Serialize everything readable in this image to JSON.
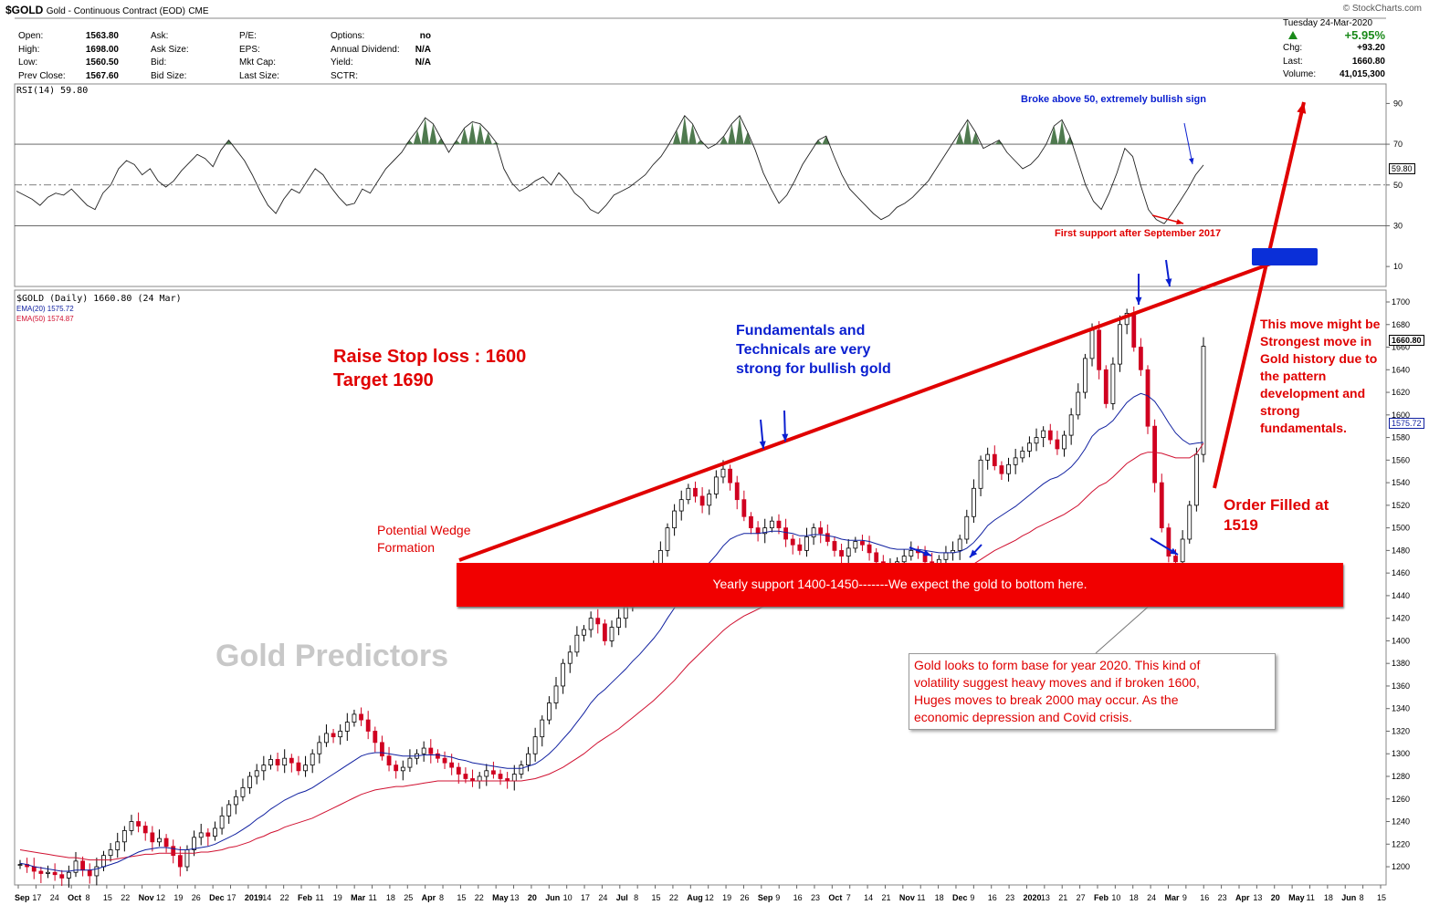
{
  "header": {
    "symbol": "$GOLD",
    "name": "Gold - Continuous Contract (EOD)",
    "exchange": "CME",
    "brand": "© StockCharts.com",
    "date": "Tuesday  24-Mar-2020",
    "pct_change": "+5.95%",
    "fields": [
      {
        "k": "Open:",
        "v": "1563.80"
      },
      {
        "k": "High:",
        "v": "1698.00"
      },
      {
        "k": "Low:",
        "v": "1560.50"
      },
      {
        "k": "Prev Close:",
        "v": "1567.60"
      }
    ],
    "fields2": [
      {
        "k": "Ask:"
      },
      {
        "k": "Ask Size:"
      },
      {
        "k": "Bid:"
      },
      {
        "k": "Bid Size:"
      }
    ],
    "fields3": [
      {
        "k": "P/E:"
      },
      {
        "k": "EPS:"
      },
      {
        "k": "Mkt Cap:"
      },
      {
        "k": "Last Size:"
      }
    ],
    "fields4": [
      {
        "k": "Options:",
        "v": "no"
      },
      {
        "k": "Annual Dividend:",
        "v": "N/A"
      },
      {
        "k": "Yield:",
        "v": "N/A"
      },
      {
        "k": "SCTR:",
        "v": ""
      }
    ],
    "right": [
      {
        "k": "Chg:",
        "v": "+93.20"
      },
      {
        "k": "Last:",
        "v": "1660.80"
      },
      {
        "k": "Volume:",
        "v": "41,015,300"
      }
    ]
  },
  "rsi_panel": {
    "label": "RSI(14) 59.80",
    "value_tag": "59.80",
    "ticks": [
      "90",
      "70",
      "50",
      "30",
      "10"
    ]
  },
  "price_panel": {
    "label": "$GOLD (Daily) 1660.80 (24 Mar)",
    "ema20_label": "EMA(20) 1575.72",
    "ema50_label": "EMA(50) 1574.87",
    "last_tag": "1660.80",
    "ema_tag": "1575.72",
    "ticks": [
      "1700",
      "1680",
      "1660",
      "1640",
      "1620",
      "1600",
      "1580",
      "1560",
      "1540",
      "1520",
      "1500",
      "1480",
      "1460",
      "1440",
      "1420",
      "1400",
      "1380",
      "1360",
      "1340",
      "1320",
      "1300",
      "1280",
      "1260",
      "1240",
      "1220",
      "1200"
    ]
  },
  "x_axis": {
    "labels": [
      "Sep",
      "17",
      "24",
      "Oct",
      "8",
      "15",
      "22",
      "Nov",
      "12",
      "19",
      "26",
      "Dec",
      "17",
      "2019",
      "14",
      "22",
      "Feb",
      "11",
      "19",
      "Mar",
      "11",
      "18",
      "25",
      "Apr",
      "8",
      "15",
      "22",
      "May",
      "13",
      "20",
      "Jun",
      "10",
      "17",
      "24",
      "Jul",
      "8",
      "15",
      "22",
      "Aug",
      "12",
      "19",
      "26",
      "Sep",
      "9",
      "16",
      "23",
      "Oct",
      "7",
      "14",
      "21",
      "Nov",
      "11",
      "18",
      "Dec",
      "9",
      "16",
      "23",
      "2020",
      "13",
      "21",
      "27",
      "Feb",
      "10",
      "18",
      "24",
      "Mar",
      "9",
      "16",
      "23",
      "Apr",
      "13",
      "20",
      "May",
      "11",
      "18",
      "Jun",
      "8",
      "15"
    ]
  },
  "annotations": {
    "broke_above": "Broke above 50, extremely bullish sign",
    "first_support": "First support after September 2017",
    "raise_stop": "Raise Stop loss : 1600",
    "target": "Target 1690",
    "fundamentals": [
      "Fundamentals and",
      "Technicals are very",
      "strong for bullish gold"
    ],
    "wedge": [
      "Potential Wedge",
      "Formation"
    ],
    "yearly_support": "Yearly support 1400-1450-------We expect the gold to bottom here.",
    "watermark": "Gold Predictors",
    "order_filled": [
      "Order Filled at",
      "1519"
    ],
    "strongest": [
      "This move might be",
      "Strongest move in",
      "Gold history due to",
      "the pattern",
      "development and",
      "strong",
      "fundamentals."
    ],
    "base_note": [
      "Gold looks to form base for year 2020. This kind of",
      "volatility suggest heavy moves and if broken 1600,",
      "Huges moves to break 2000 may occur. As the",
      "economic depression and Covid crisis."
    ]
  },
  "colors": {
    "accent_red": "#e00000",
    "accent_blue": "#0a1fd0",
    "ema20": "#1020a0",
    "ema50": "#d01030",
    "rsi_fill": "#4f7a4f"
  },
  "chart_data": [
    {
      "type": "line",
      "title": "RSI(14) 59.80",
      "ylim": [
        0,
        100
      ],
      "grid": true,
      "series": [
        {
          "name": "RSI(14)",
          "values": [
            47,
            45,
            43,
            40,
            44,
            46,
            45,
            48,
            44,
            40,
            38,
            46,
            50,
            58,
            62,
            60,
            55,
            58,
            52,
            49,
            52,
            57,
            61,
            65,
            63,
            59,
            67,
            72,
            67,
            62,
            55,
            47,
            40,
            36,
            43,
            48,
            46,
            52,
            58,
            55,
            49,
            44,
            40,
            41,
            48,
            46,
            52,
            58,
            62,
            66,
            72,
            77,
            83,
            80,
            73,
            66,
            72,
            78,
            81,
            80,
            76,
            71,
            58,
            51,
            47,
            49,
            52,
            54,
            50,
            56,
            52,
            46,
            43,
            38,
            36,
            40,
            45,
            47,
            49,
            52,
            55,
            60,
            64,
            70,
            77,
            84,
            80,
            72,
            68,
            70,
            74,
            80,
            84,
            76,
            67,
            56,
            48,
            41,
            45,
            52,
            60,
            66,
            72,
            74,
            64,
            55,
            48,
            44,
            40,
            36,
            33,
            35,
            39,
            41,
            44,
            48,
            52,
            58,
            64,
            70,
            76,
            82,
            76,
            68,
            70,
            72,
            66,
            62,
            58,
            60,
            64,
            70,
            79,
            82,
            74,
            62,
            50,
            42,
            38,
            46,
            56,
            68,
            64,
            50,
            38,
            33,
            31,
            36,
            42,
            48,
            55,
            59.8
          ]
        }
      ]
    },
    {
      "type": "line",
      "title": "$GOLD (Daily) 1660.80 (24 Mar)",
      "ylim": [
        1180,
        1710
      ],
      "grid": true,
      "series": [
        {
          "name": "$GOLD",
          "values": [
            1202,
            1200,
            1196,
            1194,
            1195,
            1193,
            1190,
            1195,
            1205,
            1197,
            1192,
            1200,
            1210,
            1215,
            1222,
            1232,
            1240,
            1236,
            1230,
            1222,
            1225,
            1218,
            1210,
            1200,
            1215,
            1226,
            1230,
            1227,
            1234,
            1245,
            1255,
            1262,
            1270,
            1280,
            1285,
            1290,
            1295,
            1290,
            1296,
            1292,
            1285,
            1290,
            1300,
            1310,
            1318,
            1315,
            1320,
            1328,
            1335,
            1330,
            1320,
            1310,
            1298,
            1290,
            1285,
            1288,
            1296,
            1300,
            1305,
            1300,
            1296,
            1292,
            1288,
            1282,
            1278,
            1276,
            1280,
            1285,
            1282,
            1278,
            1276,
            1282,
            1290,
            1300,
            1315,
            1330,
            1345,
            1360,
            1380,
            1390,
            1405,
            1410,
            1420,
            1415,
            1400,
            1412,
            1420,
            1430,
            1440,
            1445,
            1450,
            1465,
            1480,
            1500,
            1515,
            1525,
            1535,
            1528,
            1520,
            1530,
            1545,
            1552,
            1540,
            1525,
            1510,
            1500,
            1495,
            1500,
            1506,
            1500,
            1490,
            1485,
            1480,
            1492,
            1500,
            1495,
            1488,
            1480,
            1475,
            1482,
            1488,
            1485,
            1478,
            1470,
            1462,
            1465,
            1470,
            1475,
            1480,
            1478,
            1470,
            1468,
            1472,
            1478,
            1480,
            1490,
            1510,
            1535,
            1560,
            1565,
            1555,
            1548,
            1556,
            1562,
            1568,
            1575,
            1580,
            1586,
            1578,
            1570,
            1582,
            1600,
            1620,
            1650,
            1675,
            1640,
            1610,
            1645,
            1680,
            1690,
            1660,
            1640,
            1590,
            1540,
            1500,
            1475,
            1470,
            1490,
            1520,
            1565,
            1660.8
          ]
        },
        {
          "name": "EMA(20)",
          "values": [
            1203,
            1202,
            1200,
            1199,
            1198,
            1197,
            1196,
            1196,
            1197,
            1197,
            1197,
            1198,
            1200,
            1202,
            1204,
            1207,
            1210,
            1213,
            1215,
            1216,
            1217,
            1217,
            1216,
            1215,
            1215,
            1216,
            1217,
            1218,
            1220,
            1223,
            1226,
            1229,
            1233,
            1237,
            1242,
            1246,
            1251,
            1255,
            1259,
            1262,
            1265,
            1267,
            1270,
            1274,
            1278,
            1282,
            1286,
            1290,
            1294,
            1298,
            1300,
            1301,
            1301,
            1300,
            1299,
            1298,
            1298,
            1298,
            1299,
            1299,
            1299,
            1298,
            1297,
            1295,
            1294,
            1292,
            1291,
            1290,
            1289,
            1288,
            1287,
            1287,
            1287,
            1289,
            1291,
            1295,
            1300,
            1306,
            1313,
            1320,
            1328,
            1336,
            1345,
            1352,
            1357,
            1363,
            1369,
            1375,
            1382,
            1388,
            1395,
            1402,
            1410,
            1420,
            1429,
            1439,
            1448,
            1456,
            1462,
            1469,
            1476,
            1484,
            1490,
            1493,
            1495,
            1495,
            1495,
            1496,
            1497,
            1497,
            1496,
            1495,
            1493,
            1493,
            1494,
            1494,
            1493,
            1492,
            1490,
            1489,
            1489,
            1489,
            1488,
            1486,
            1484,
            1482,
            1481,
            1481,
            1481,
            1481,
            1480,
            1479,
            1478,
            1478,
            1478,
            1479,
            1482,
            1487,
            1494,
            1502,
            1507,
            1511,
            1515,
            1519,
            1524,
            1529,
            1534,
            1539,
            1543,
            1545,
            1549,
            1554,
            1561,
            1570,
            1581,
            1587,
            1590,
            1595,
            1603,
            1611,
            1616,
            1619,
            1617,
            1612,
            1603,
            1593,
            1584,
            1578,
            1574,
            1575,
            1575.72
          ]
        },
        {
          "name": "EMA(50)",
          "values": [
            1215,
            1214,
            1213,
            1212,
            1211,
            1210,
            1209,
            1208,
            1208,
            1207,
            1206,
            1206,
            1206,
            1206,
            1207,
            1208,
            1209,
            1210,
            1211,
            1211,
            1212,
            1212,
            1212,
            1212,
            1212,
            1212,
            1213,
            1213,
            1214,
            1215,
            1217,
            1218,
            1220,
            1222,
            1225,
            1227,
            1230,
            1232,
            1235,
            1237,
            1239,
            1241,
            1243,
            1246,
            1249,
            1252,
            1255,
            1258,
            1261,
            1264,
            1266,
            1268,
            1269,
            1270,
            1271,
            1271,
            1272,
            1273,
            1274,
            1275,
            1276,
            1276,
            1276,
            1276,
            1276,
            1276,
            1276,
            1276,
            1276,
            1276,
            1276,
            1276,
            1276,
            1277,
            1278,
            1280,
            1282,
            1285,
            1288,
            1292,
            1296,
            1300,
            1305,
            1310,
            1314,
            1318,
            1322,
            1327,
            1332,
            1337,
            1342,
            1347,
            1353,
            1359,
            1365,
            1372,
            1379,
            1385,
            1391,
            1397,
            1403,
            1409,
            1414,
            1418,
            1422,
            1425,
            1428,
            1431,
            1434,
            1437,
            1439,
            1441,
            1443,
            1445,
            1447,
            1449,
            1450,
            1451,
            1452,
            1453,
            1454,
            1455,
            1456,
            1456,
            1456,
            1457,
            1457,
            1458,
            1459,
            1460,
            1460,
            1460,
            1461,
            1461,
            1462,
            1463,
            1465,
            1468,
            1472,
            1476,
            1480,
            1483,
            1486,
            1489,
            1493,
            1496,
            1500,
            1503,
            1506,
            1509,
            1512,
            1516,
            1520,
            1526,
            1532,
            1537,
            1540,
            1545,
            1551,
            1557,
            1561,
            1565,
            1567,
            1567,
            1566,
            1564,
            1562,
            1562,
            1562,
            1566,
            1574.87
          ]
        }
      ]
    }
  ]
}
